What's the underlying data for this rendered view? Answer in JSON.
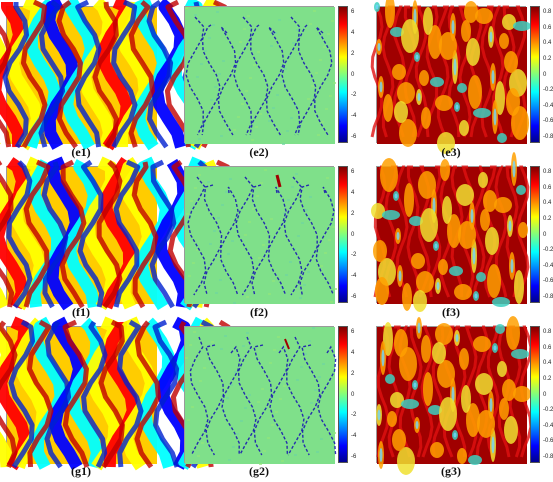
{
  "rows": [
    {
      "captions": [
        "(e1)",
        "(e2)",
        "(e3)"
      ]
    },
    {
      "captions": [
        "(f1)",
        "(f2)",
        "(f3)"
      ]
    },
    {
      "captions": [
        "(g1)",
        "(g2)",
        "(g3)"
      ]
    }
  ],
  "colorbar_mid": {
    "ticks": [
      "6",
      "4",
      "2",
      "0",
      "-2",
      "-4",
      "-6"
    ]
  },
  "colorbar_right": {
    "ticks": [
      "0.8",
      "0.6",
      "0.4",
      "0.2",
      "0",
      "-0.2",
      "-0.4",
      "-0.6",
      "-0.8"
    ]
  },
  "colormap": "jet"
}
